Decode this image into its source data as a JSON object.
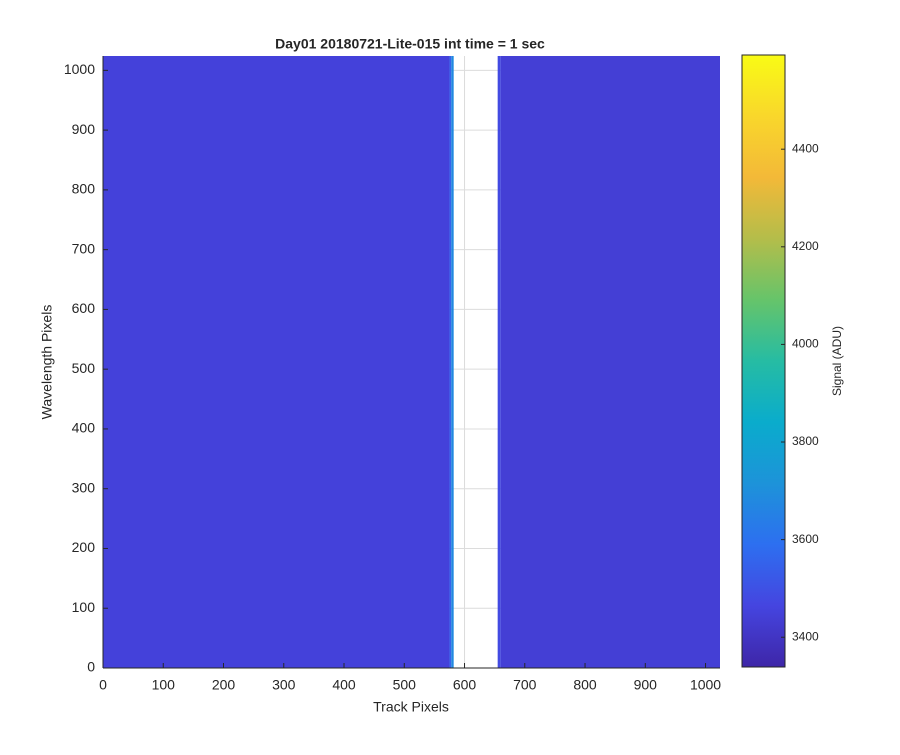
{
  "chart_data": {
    "type": "image",
    "title": "Day01 20180721-Lite-015 int time = 1 sec",
    "x_label": "Track Pixels",
    "y_label": "Wavelength Pixels",
    "colorbar_label": "Signal (ADU)",
    "xlim": [
      0,
      1024
    ],
    "ylim": [
      0,
      1024
    ],
    "xticks": [
      0,
      100,
      200,
      300,
      400,
      500,
      600,
      700,
      800,
      900,
      1000
    ],
    "yticks": [
      0,
      100,
      200,
      300,
      400,
      500,
      600,
      700,
      800,
      900,
      1000
    ],
    "grid": true,
    "clim": [
      3339,
      4593
    ],
    "cticks": [
      3400,
      3600,
      3800,
      4000,
      4200,
      4400
    ],
    "colormap": [
      "#3e26a8",
      "#4545e0",
      "#2d6ff0",
      "#1d93d9",
      "#0aaccc",
      "#26bca3",
      "#66c46a",
      "#b4bd4a",
      "#f3b938",
      "#f9d72b",
      "#f9fb15"
    ],
    "bands": [
      {
        "x": [
          0,
          575
        ],
        "value": 3450
      },
      {
        "x": [
          575,
          578
        ],
        "value": 3550
      },
      {
        "x": [
          578,
          582
        ],
        "value": 3680
      },
      {
        "x": [
          655,
          660
        ],
        "value": 3480
      },
      {
        "x": [
          660,
          1024
        ],
        "value": 3440
      }
    ]
  }
}
